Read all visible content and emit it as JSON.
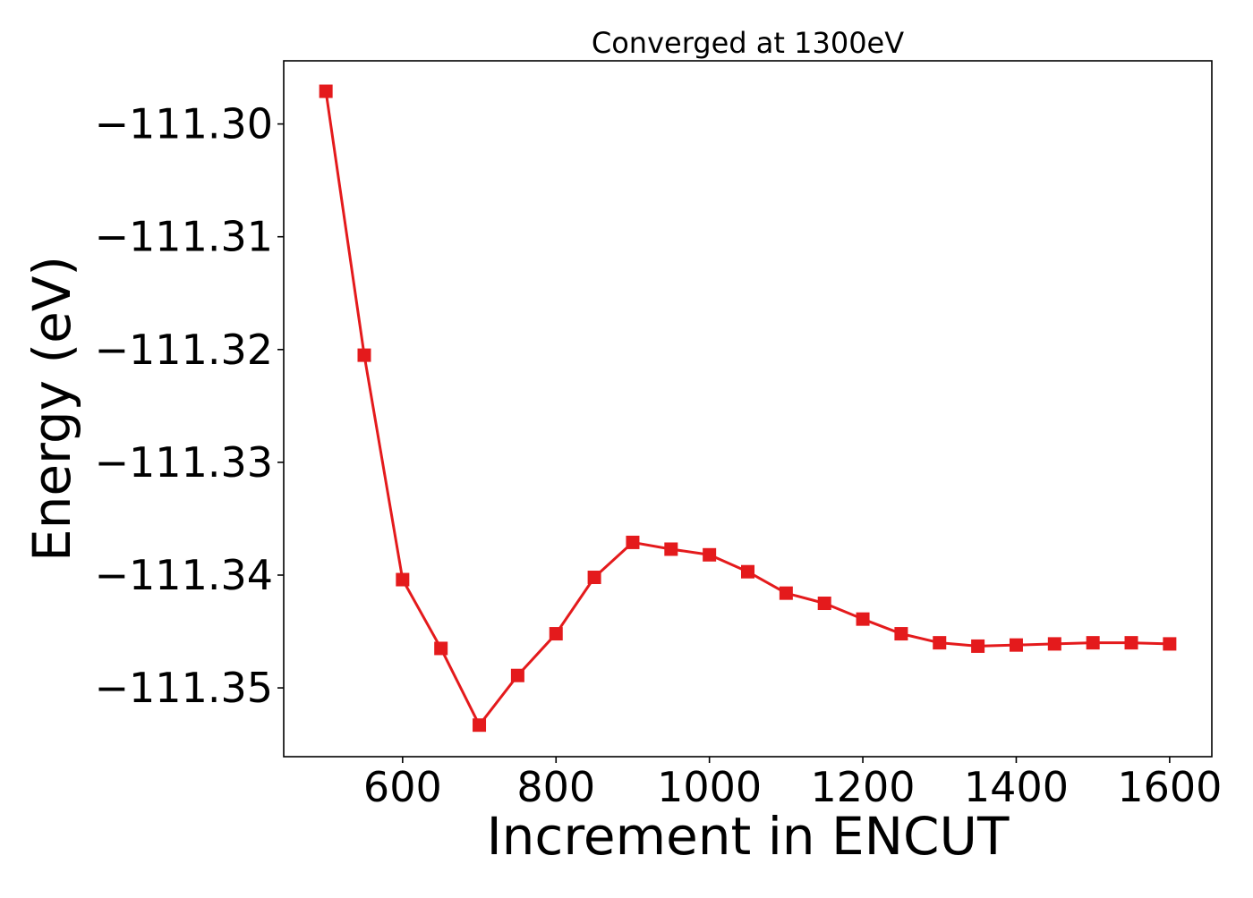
{
  "chart_data": {
    "type": "line",
    "title": "Converged at 1300eV",
    "xlabel": "Increment in ENCUT",
    "ylabel": "Energy (eV)",
    "xlim": [
      445,
      1655
    ],
    "ylim": [
      -111.3561,
      -111.2944
    ],
    "xticks": [
      600,
      800,
      1000,
      1200,
      1400,
      1600
    ],
    "yticks": [
      -111.3,
      -111.31,
      -111.32,
      -111.33,
      -111.34,
      -111.35
    ],
    "xtick_labels": [
      "600",
      "800",
      "1000",
      "1200",
      "1400",
      "1600"
    ],
    "ytick_labels": [
      "−111.30",
      "−111.31",
      "−111.32",
      "−111.33",
      "−111.34",
      "−111.35"
    ],
    "grid": false,
    "legend": "none",
    "marker": "square",
    "color": "#e41a1c",
    "series": [
      {
        "x": [
          500,
          550,
          600,
          650,
          700,
          750,
          800,
          850,
          900,
          950,
          1000,
          1050,
          1100,
          1150,
          1200,
          1250,
          1300,
          1350,
          1400,
          1450,
          1500,
          1550,
          1600
        ],
        "values": [
          -111.2971,
          -111.3205,
          -111.3404,
          -111.3465,
          -111.3533,
          -111.3489,
          -111.3452,
          -111.3402,
          -111.3371,
          -111.3377,
          -111.3382,
          -111.3397,
          -111.3416,
          -111.3425,
          -111.3439,
          -111.3452,
          -111.346,
          -111.3463,
          -111.3462,
          -111.3461,
          -111.346,
          -111.346,
          -111.3461
        ]
      }
    ]
  }
}
